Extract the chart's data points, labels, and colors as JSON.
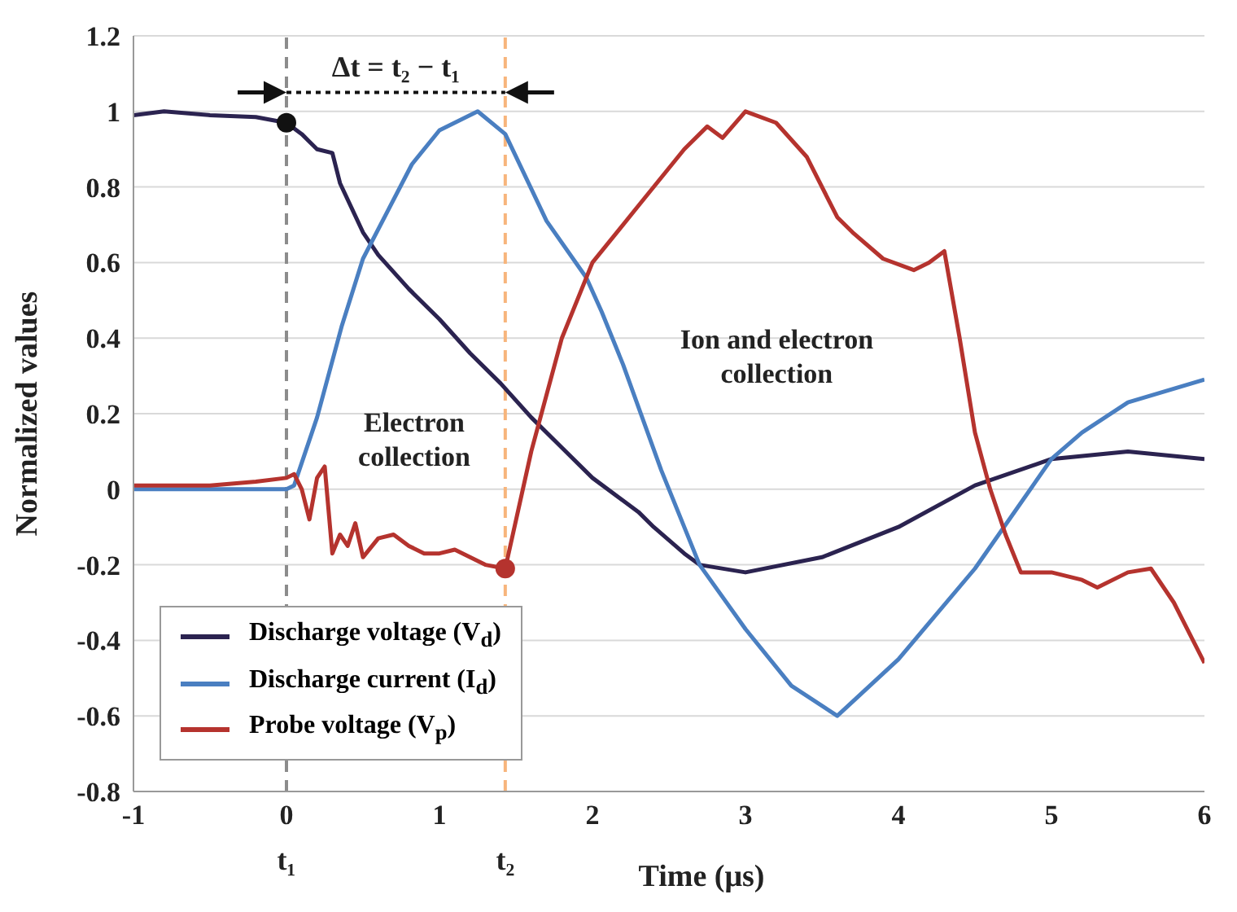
{
  "chart_data": {
    "type": "line",
    "xlabel": "Time (μs)",
    "ylabel": "Normalized values",
    "xlim": [
      -1,
      6
    ],
    "xticks": [
      -1,
      0,
      1,
      2,
      3,
      4,
      5,
      6
    ],
    "ylim": [
      -0.8,
      1.2
    ],
    "yticks": [
      -0.8,
      -0.6,
      -0.4,
      -0.2,
      0,
      0.2,
      0.4,
      0.6,
      0.8,
      1,
      1.2
    ],
    "grid": "y",
    "legend": "bottom left",
    "line_style": "solid",
    "series": [
      {
        "name": "Discharge voltage (V$_{d}$)",
        "color": "#2b2350",
        "x": [
          -1,
          -0.8,
          -0.5,
          -0.2,
          0,
          0.1,
          0.15,
          0.2,
          0.3,
          0.35,
          0.5,
          0.6,
          0.8,
          1,
          1.2,
          1.4,
          1.6,
          1.8,
          2,
          2.2,
          2.3,
          2.4,
          2.6,
          2.7,
          3,
          3.5,
          4,
          4.5,
          5,
          5.5,
          6
        ],
        "values": [
          0.99,
          1,
          0.99,
          0.985,
          0.97,
          0.94,
          0.92,
          0.9,
          0.89,
          0.81,
          0.68,
          0.62,
          0.53,
          0.45,
          0.36,
          0.28,
          0.19,
          0.11,
          0.03,
          -0.03,
          -0.06,
          -0.1,
          -0.17,
          -0.2,
          -0.22,
          -0.18,
          -0.1,
          0.01,
          0.08,
          0.1,
          0.08
        ]
      },
      {
        "name": "Discharge current (I$_{d}$)",
        "color": "#4a7fc1",
        "x": [
          -1,
          -0.5,
          0,
          0.05,
          0.2,
          0.36,
          0.5,
          0.82,
          1,
          1.25,
          1.43,
          1.7,
          1.96,
          2.06,
          2.2,
          2.45,
          2.7,
          3,
          3.3,
          3.6,
          4,
          4.5,
          5,
          5.2,
          5.5,
          6
        ],
        "values": [
          0,
          0,
          0,
          0.01,
          0.19,
          0.43,
          0.61,
          0.86,
          0.95,
          1,
          0.94,
          0.71,
          0.56,
          0.47,
          0.33,
          0.05,
          -0.2,
          -0.37,
          -0.52,
          -0.6,
          -0.45,
          -0.21,
          0.08,
          0.15,
          0.23,
          0.29
        ]
      },
      {
        "name": "Probe voltage (V$_{p}$)",
        "color": "#b5332e",
        "x": [
          -1,
          -0.5,
          -0.2,
          0,
          0.05,
          0.1,
          0.15,
          0.2,
          0.25,
          0.3,
          0.35,
          0.4,
          0.45,
          0.5,
          0.6,
          0.7,
          0.8,
          0.9,
          1,
          1.1,
          1.2,
          1.3,
          1.43,
          1.6,
          1.8,
          2,
          2.3,
          2.6,
          2.75,
          2.85,
          3,
          3.2,
          3.4,
          3.6,
          3.7,
          3.9,
          4.1,
          4.2,
          4.3,
          4.4,
          4.5,
          4.6,
          4.7,
          4.8,
          5,
          5.2,
          5.3,
          5.5,
          5.65,
          5.8,
          6
        ],
        "values": [
          0.01,
          0.01,
          0.02,
          0.03,
          0.04,
          0,
          -0.08,
          0.03,
          0.06,
          -0.17,
          -0.12,
          -0.15,
          -0.09,
          -0.18,
          -0.13,
          -0.12,
          -0.15,
          -0.17,
          -0.17,
          -0.16,
          -0.18,
          -0.2,
          -0.21,
          0.1,
          0.4,
          0.6,
          0.75,
          0.9,
          0.96,
          0.93,
          1,
          0.97,
          0.88,
          0.72,
          0.68,
          0.61,
          0.58,
          0.6,
          0.63,
          0.4,
          0.15,
          0,
          -0.12,
          -0.22,
          -0.22,
          -0.24,
          -0.26,
          -0.22,
          -0.21,
          -0.3,
          -0.46
        ]
      },
      {
        "type": "scatter",
        "marker": "circle",
        "x": [
          0,
          1.43
        ],
        "values": [
          0.97,
          -0.21
        ],
        "colors": [
          "#111111",
          "#b5332e"
        ]
      }
    ],
    "ref_lines": [
      {
        "axis": "x",
        "value": 0,
        "label": "t₁",
        "color": "#8c8c8c",
        "line_style": "dashed"
      },
      {
        "axis": "x",
        "value": 1.43,
        "label": "t₂",
        "color": "#f7b57c",
        "line_style": "dashed"
      }
    ],
    "annotations": [
      "Δt = t₂ − t₁",
      "Electron collection",
      "Ion and electron collection"
    ]
  }
}
